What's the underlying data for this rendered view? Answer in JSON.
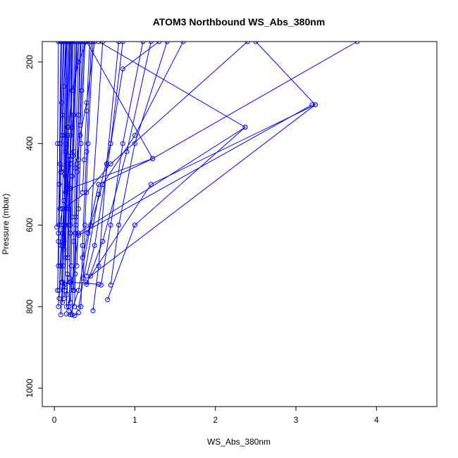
{
  "chart_data": {
    "type": "line",
    "title": "ATOM3 Northbound WS_Abs_380nm",
    "xlabel": "WS_Abs_380nm",
    "ylabel": "Pressure (mbar)",
    "xlim": [
      -0.15,
      4.75
    ],
    "ylim": [
      1045,
      150
    ],
    "y_reversed": true,
    "x_ticks": [
      0,
      1,
      2,
      3,
      4
    ],
    "y_ticks": [
      200,
      400,
      600,
      800,
      1000
    ],
    "grid": false,
    "series_color": "#0000ff",
    "marker": "open-circle",
    "series": [
      {
        "x": [
          0.05,
          0.06,
          0.08,
          0.1,
          0.12,
          0.15,
          0.18,
          0.22,
          0.3,
          0.4
        ],
        "y": [
          800,
          760,
          700,
          620,
          540,
          450,
          360,
          270,
          200,
          150
        ]
      },
      {
        "x": [
          0.08,
          0.1,
          0.12,
          0.14,
          0.16,
          0.18
        ],
        "y": [
          820,
          740,
          640,
          520,
          380,
          150
        ]
      },
      {
        "x": [
          0.1,
          0.11,
          0.12,
          0.13,
          0.14
        ],
        "y": [
          790,
          700,
          560,
          380,
          150
        ]
      },
      {
        "x": [
          0.12,
          0.14,
          0.15,
          0.17,
          0.2
        ],
        "y": [
          780,
          680,
          560,
          430,
          150
        ]
      },
      {
        "x": [
          0.15,
          0.16,
          0.18,
          0.2,
          0.23
        ],
        "y": [
          800,
          720,
          600,
          450,
          150
        ]
      },
      {
        "x": [
          0.18,
          0.19,
          0.2,
          0.22,
          0.25
        ],
        "y": [
          810,
          740,
          620,
          480,
          150
        ]
      },
      {
        "x": [
          0.2,
          0.21,
          0.22,
          0.24,
          0.28
        ],
        "y": [
          790,
          700,
          580,
          420,
          150
        ]
      },
      {
        "x": [
          0.22,
          0.23,
          0.24,
          0.26,
          0.3
        ],
        "y": [
          820,
          760,
          640,
          460,
          150
        ]
      },
      {
        "x": [
          0.25,
          0.26,
          0.27,
          0.3,
          0.35
        ],
        "y": [
          800,
          720,
          600,
          440,
          150
        ]
      },
      {
        "x": [
          0.05,
          0.06,
          0.07,
          0.09
        ],
        "y": [
          700,
          600,
          450,
          150
        ]
      },
      {
        "x": [
          0.04,
          0.05,
          0.06,
          0.08
        ],
        "y": [
          760,
          640,
          500,
          150
        ]
      },
      {
        "x": [
          0.03,
          0.04,
          0.05
        ],
        "y": [
          605,
          400,
          150
        ]
      },
      {
        "x": [
          0.06,
          0.07,
          0.09,
          0.11
        ],
        "y": [
          500,
          400,
          300,
          150
        ]
      },
      {
        "x": [
          0.09,
          0.1,
          0.12,
          0.14
        ],
        "y": [
          470,
          380,
          260,
          150
        ]
      },
      {
        "x": [
          0.13,
          0.14,
          0.16
        ],
        "y": [
          760,
          480,
          150
        ]
      },
      {
        "x": [
          0.16,
          0.17,
          0.19
        ],
        "y": [
          770,
          500,
          150
        ]
      },
      {
        "x": [
          0.19,
          0.2,
          0.21
        ],
        "y": [
          730,
          440,
          150
        ]
      },
      {
        "x": [
          0.24,
          0.26,
          0.28,
          0.32
        ],
        "y": [
          760,
          620,
          460,
          150
        ]
      },
      {
        "x": [
          0.28,
          0.3,
          0.33,
          0.38
        ],
        "y": [
          700,
          560,
          400,
          150
        ]
      },
      {
        "x": [
          0.33,
          0.35,
          0.4,
          0.46
        ],
        "y": [
          800,
          650,
          420,
          150
        ]
      },
      {
        "x": [
          0.36,
          0.38,
          0.42,
          0.48
        ],
        "y": [
          730,
          600,
          400,
          150
        ]
      },
      {
        "x": [
          0.1,
          0.12,
          0.14,
          0.16
        ],
        "y": [
          650,
          540,
          400,
          150
        ]
      },
      {
        "x": [
          0.07,
          0.08,
          0.1,
          0.12
        ],
        "y": [
          560,
          470,
          330,
          150
        ]
      },
      {
        "x": [
          0.14,
          0.15,
          0.16,
          0.18
        ],
        "y": [
          600,
          500,
          360,
          150
        ]
      },
      {
        "x": [
          0.17,
          0.18,
          0.2,
          0.22
        ],
        "y": [
          680,
          560,
          380,
          150
        ]
      },
      {
        "x": [
          0.2,
          0.22,
          0.24,
          0.27
        ],
        "y": [
          600,
          480,
          330,
          150
        ]
      },
      {
        "x": [
          0.27,
          0.28,
          0.3,
          0.33
        ],
        "y": [
          580,
          470,
          330,
          150
        ]
      },
      {
        "x": [
          0.35,
          0.37,
          0.4,
          0.44
        ],
        "y": [
          520,
          440,
          320,
          150
        ]
      },
      {
        "x": [
          0.2,
          0.3,
          0.45,
          0.6
        ],
        "y": [
          820,
          760,
          600,
          150
        ]
      },
      {
        "x": [
          0.3,
          0.55,
          0.7,
          0.85
        ],
        "y": [
          803,
          525,
          400,
          150
        ]
      },
      {
        "x": [
          0.7,
          0.8,
          1.0,
          1.4
        ],
        "y": [
          747,
          600,
          400,
          150
        ]
      },
      {
        "x": [
          0.58,
          0.7,
          0.85,
          1.1
        ],
        "y": [
          747,
          600,
          400,
          150
        ]
      },
      {
        "x": [
          0.4,
          0.5,
          0.85,
          1.3
        ],
        "y": [
          725,
          650,
          217,
          150
        ]
      },
      {
        "x": [
          0.18,
          0.3,
          2.37,
          0.55
        ],
        "y": [
          800,
          620,
          360,
          150
        ]
      },
      {
        "x": [
          0.66,
          1.0,
          2.37
        ],
        "y": [
          783,
          600,
          360
        ]
      },
      {
        "x": [
          0.4,
          1.2,
          3.24,
          2.5
        ],
        "y": [
          740,
          500,
          305,
          150
        ]
      },
      {
        "x": [
          0.3,
          3.2
        ],
        "y": [
          625,
          305
        ]
      },
      {
        "x": [
          0.45,
          3.24
        ],
        "y": [
          725,
          305
        ]
      },
      {
        "x": [
          0.2,
          1.22,
          3.76
        ],
        "y": [
          510,
          437,
          150
        ]
      },
      {
        "x": [
          0.35,
          0.55,
          1.22,
          0.4
        ],
        "y": [
          680,
          500,
          437,
          150
        ]
      },
      {
        "x": [
          0.42,
          0.6,
          1.0,
          1.6
        ],
        "y": [
          620,
          500,
          380,
          150
        ]
      },
      {
        "x": [
          0.05,
          0.1,
          0.4,
          0.7,
          2.4
        ],
        "y": [
          620,
          560,
          520,
          450,
          150
        ]
      },
      {
        "x": [
          0.4,
          0.6,
          0.9,
          1.2
        ],
        "y": [
          745,
          640,
          420,
          150
        ]
      },
      {
        "x": [
          0.48,
          0.55,
          0.65,
          0.8
        ],
        "y": [
          810,
          700,
          450,
          150
        ]
      },
      {
        "x": [
          0.28,
          0.32,
          0.4,
          0.5
        ],
        "y": [
          450,
          380,
          300,
          150
        ]
      },
      {
        "x": [
          0.12,
          0.16,
          0.22,
          0.3
        ],
        "y": [
          660,
          520,
          360,
          150
        ]
      },
      {
        "x": [
          0.09,
          0.11,
          0.14,
          0.18
        ],
        "y": [
          740,
          600,
          420,
          150
        ]
      },
      {
        "x": [
          0.06,
          0.08,
          0.11,
          0.15
        ],
        "y": [
          780,
          650,
          460,
          150
        ]
      },
      {
        "x": [
          0.23,
          0.24,
          0.27
        ],
        "y": [
          430,
          330,
          150
        ]
      },
      {
        "x": [
          0.32,
          0.34,
          0.37
        ],
        "y": [
          355,
          270,
          150
        ]
      },
      {
        "x": [
          0.1,
          0.13,
          0.2,
          0.55
        ],
        "y": [
          750,
          745,
          740,
          745
        ]
      },
      {
        "x": [
          0.15,
          0.25,
          0.3
        ],
        "y": [
          818,
          822,
          815
        ]
      }
    ]
  }
}
